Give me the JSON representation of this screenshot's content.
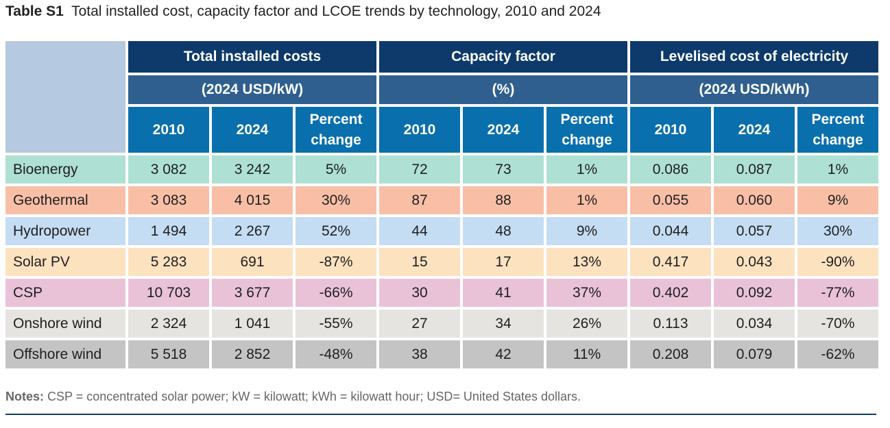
{
  "title": {
    "label": "Table S1",
    "text": "Total installed cost, capacity factor and LCOE trends by technology, 2010 and 2024"
  },
  "groups": [
    {
      "name": "Total installed costs",
      "unit": "(2024 USD/kW)"
    },
    {
      "name": "Capacity factor",
      "unit": "(%)"
    },
    {
      "name": "Levelised cost of electricity",
      "unit": "(2024 USD/kWh)"
    }
  ],
  "subheaders": [
    "2010",
    "2024",
    "Percent change",
    "2010",
    "2024",
    "Percent change",
    "2010",
    "2024",
    "Percent change"
  ],
  "rows": [
    {
      "tech": "Bioenergy",
      "color": "#aee0d4",
      "values": [
        "3 082",
        "3 242",
        "5%",
        "72",
        "73",
        "1%",
        "0.086",
        "0.087",
        "1%"
      ]
    },
    {
      "tech": "Geothermal",
      "color": "#f8bfa6",
      "values": [
        "3 083",
        "4 015",
        "30%",
        "87",
        "88",
        "1%",
        "0.055",
        "0.060",
        "9%"
      ]
    },
    {
      "tech": "Hydropower",
      "color": "#c4ddf3",
      "values": [
        "1 494",
        "2 267",
        "52%",
        "44",
        "48",
        "9%",
        "0.044",
        "0.057",
        "30%"
      ]
    },
    {
      "tech": "Solar PV",
      "color": "#fde2c0",
      "values": [
        "5 283",
        "691",
        "-87%",
        "15",
        "17",
        "13%",
        "0.417",
        "0.043",
        "-90%"
      ]
    },
    {
      "tech": "CSP",
      "color": "#e9c2d8",
      "values": [
        "10 703",
        "3 677",
        "-66%",
        "30",
        "41",
        "37%",
        "0.402",
        "0.092",
        "-77%"
      ]
    },
    {
      "tech": "Onshore wind",
      "color": "#e5e4e1",
      "values": [
        "2 324",
        "1 041",
        "-55%",
        "27",
        "34",
        "26%",
        "0.113",
        "0.034",
        "-70%"
      ]
    },
    {
      "tech": "Offshore wind",
      "color": "#c4c4c4",
      "values": [
        "5 518",
        "2 852",
        "-48%",
        "38",
        "42",
        "11%",
        "0.208",
        "0.079",
        "-62%"
      ]
    }
  ],
  "notes": {
    "label": "Notes:",
    "text": " CSP = concentrated solar power; kW = kilowatt; kWh = kilowatt hour; USD= United States dollars."
  }
}
